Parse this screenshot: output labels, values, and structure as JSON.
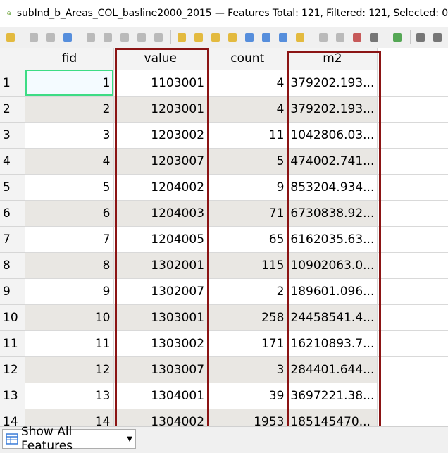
{
  "window": {
    "title": "subInd_b_Areas_COL_basline2000_2015 — Features Total: 121, Filtered: 121, Selected: 0"
  },
  "toolbar": {
    "buttons": [
      {
        "name": "toggle-editing-icon",
        "color": "#e0b020"
      },
      {
        "name": "multi-edit-icon",
        "color": "#b0b0b0"
      },
      {
        "name": "save-edits-icon",
        "color": "#b0b0b0"
      },
      {
        "name": "reload-icon",
        "color": "#3b7dd8"
      },
      {
        "name": "add-feature-icon",
        "color": "#b0b0b0"
      },
      {
        "name": "delete-feature-icon",
        "color": "#b0b0b0"
      },
      {
        "name": "cut-icon",
        "color": "#b0b0b0"
      },
      {
        "name": "copy-icon",
        "color": "#b0b0b0"
      },
      {
        "name": "paste-icon",
        "color": "#b0b0b0"
      },
      {
        "name": "select-expression-icon",
        "color": "#e0b020"
      },
      {
        "name": "select-all-icon",
        "color": "#e0b020"
      },
      {
        "name": "invert-selection-icon",
        "color": "#e0b020"
      },
      {
        "name": "deselect-icon",
        "color": "#e0b020"
      },
      {
        "name": "filter-icon",
        "color": "#3b7dd8"
      },
      {
        "name": "move-to-top-icon",
        "color": "#3b7dd8"
      },
      {
        "name": "pan-to-selected-icon",
        "color": "#3b7dd8"
      },
      {
        "name": "zoom-to-selected-icon",
        "color": "#e0b020"
      },
      {
        "name": "new-field-icon",
        "color": "#b0b0b0"
      },
      {
        "name": "delete-field-icon",
        "color": "#b0b0b0"
      },
      {
        "name": "field-calculator-icon",
        "color": "#c04040"
      },
      {
        "name": "conditional-format-icon",
        "color": "#606060"
      },
      {
        "name": "dock-icon",
        "color": "#3a9a3a"
      },
      {
        "name": "actions-icon",
        "color": "#606060"
      },
      {
        "name": "more-icon",
        "color": "#606060"
      }
    ]
  },
  "table": {
    "columns": [
      "fid",
      "value",
      "count",
      "m2"
    ],
    "rows": [
      {
        "row": "1",
        "fid": "1",
        "value": "1103001",
        "count": "4",
        "m2": "379202.193..."
      },
      {
        "row": "2",
        "fid": "2",
        "value": "1203001",
        "count": "4",
        "m2": "379202.193..."
      },
      {
        "row": "3",
        "fid": "3",
        "value": "1203002",
        "count": "11",
        "m2": "1042806.03..."
      },
      {
        "row": "4",
        "fid": "4",
        "value": "1203007",
        "count": "5",
        "m2": "474002.741..."
      },
      {
        "row": "5",
        "fid": "5",
        "value": "1204002",
        "count": "9",
        "m2": "853204.934..."
      },
      {
        "row": "6",
        "fid": "6",
        "value": "1204003",
        "count": "71",
        "m2": "6730838.92..."
      },
      {
        "row": "7",
        "fid": "7",
        "value": "1204005",
        "count": "65",
        "m2": "6162035.63..."
      },
      {
        "row": "8",
        "fid": "8",
        "value": "1302001",
        "count": "115",
        "m2": "10902063.0..."
      },
      {
        "row": "9",
        "fid": "9",
        "value": "1302007",
        "count": "2",
        "m2": "189601.096..."
      },
      {
        "row": "10",
        "fid": "10",
        "value": "1303001",
        "count": "258",
        "m2": "24458541.4..."
      },
      {
        "row": "11",
        "fid": "11",
        "value": "1303002",
        "count": "171",
        "m2": "16210893.7..."
      },
      {
        "row": "12",
        "fid": "12",
        "value": "1303007",
        "count": "3",
        "m2": "284401.644..."
      },
      {
        "row": "13",
        "fid": "13",
        "value": "1304001",
        "count": "39",
        "m2": "3697221.38..."
      },
      {
        "row": "14",
        "fid": "14",
        "value": "1304002",
        "count": "1953",
        "m2": "185145470..."
      }
    ]
  },
  "bottom": {
    "show_features_label": "Show All Features"
  },
  "colors": {
    "highlight_box": "#8b1414",
    "alt_row": "#e9e7e3",
    "active_cell_border": "#3ddc84"
  }
}
